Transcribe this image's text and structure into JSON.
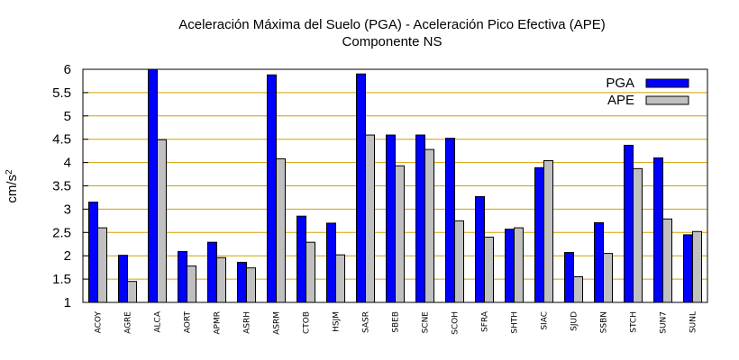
{
  "chart_data": {
    "type": "bar",
    "title": "Aceleración Máxima del Suelo (PGA) -  Aceleración Pico Efectiva (APE)",
    "subtitle": "Componente NS",
    "xlabel": "",
    "ylabel": "cm/s",
    "ylabel_superscript": "2",
    "ylim": [
      1,
      6
    ],
    "yticks": [
      "1",
      "1.5",
      "2",
      "2.5",
      "3",
      "3.5",
      "4",
      "4.5",
      "5",
      "5.5",
      "6"
    ],
    "grid": true,
    "legend_position": "top-right",
    "categories": [
      "ACOY",
      "AGRE",
      "ALCA",
      "AORT",
      "APMR",
      "ASRH",
      "ASRM",
      "CTOB",
      "HSJM",
      "SASR",
      "SBEB",
      "SCNE",
      "SCOH",
      "SFRA",
      "SHTH",
      "SIAC",
      "SJUD",
      "SSBN",
      "STCH",
      "SUN7",
      "SUNL"
    ],
    "series": [
      {
        "name": "PGA",
        "color": "#0000ff",
        "values": [
          3.15,
          2.01,
          6.0,
          2.09,
          2.29,
          1.86,
          5.88,
          2.85,
          2.7,
          5.9,
          4.59,
          4.59,
          4.52,
          3.27,
          2.57,
          3.89,
          2.07,
          2.71,
          4.37,
          4.1,
          2.45
        ]
      },
      {
        "name": "APE",
        "color": "#c0c0c0",
        "values": [
          2.6,
          1.45,
          4.49,
          1.78,
          1.96,
          1.74,
          4.08,
          2.29,
          2.02,
          4.59,
          3.93,
          4.28,
          2.75,
          2.4,
          2.6,
          4.04,
          1.55,
          2.05,
          3.87,
          2.79,
          2.52
        ]
      }
    ]
  }
}
